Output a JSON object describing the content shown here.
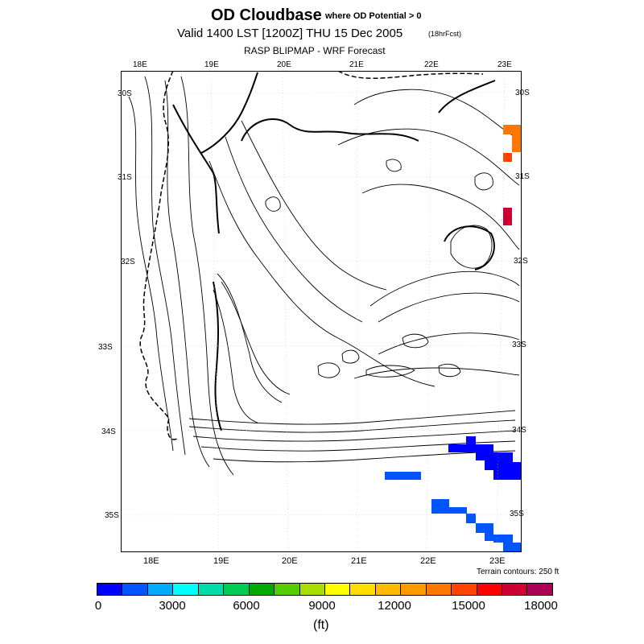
{
  "title": {
    "main": "OD Cloudbase",
    "condition": "where OD Potential > 0",
    "valid": "Valid 1400 LST [1200Z] THU 15 Dec 2005",
    "forecast": "(18hrFcst)",
    "model": "RASP BLIPMAP - WRF Forecast"
  },
  "map": {
    "lon_labels_top": [
      "18E",
      "19E",
      "20E",
      "21E",
      "22E",
      "23E"
    ],
    "lon_labels_bottom": [
      "18E",
      "19E",
      "20E",
      "21E",
      "22E",
      "23E"
    ],
    "lat_labels_left": [
      "30S",
      "31S",
      "32S",
      "33S",
      "34S",
      "35S"
    ],
    "lat_labels_right": [
      "30S",
      "31S",
      "32S",
      "33S",
      "34S",
      "35S"
    ],
    "terrain_note": "Terrain contours: 250 ft"
  },
  "colorbar": {
    "colors": [
      "#0000ff",
      "#0055ff",
      "#00aaff",
      "#00ffff",
      "#00ddaa",
      "#00cc55",
      "#00aa00",
      "#55cc00",
      "#aadd00",
      "#ffff00",
      "#ffdd00",
      "#ffbb00",
      "#ff9900",
      "#ff7700",
      "#ff4400",
      "#ff0000",
      "#cc0033",
      "#aa0055"
    ],
    "tick_labels": [
      "0",
      "3000",
      "6000",
      "9000",
      "12000",
      "15000",
      "18000"
    ],
    "units": "(ft)"
  }
}
